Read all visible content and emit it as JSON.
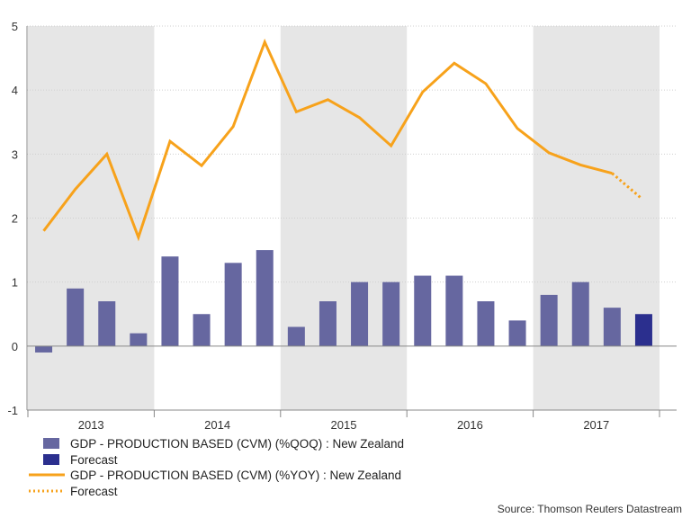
{
  "chart_data": {
    "type": "bar+line",
    "title": "",
    "xlabel": "",
    "ylabel": "",
    "ylim": [
      -1,
      5
    ],
    "yticks": [
      -1,
      0,
      1,
      2,
      3,
      4,
      5
    ],
    "grid": true,
    "years": [
      "2013",
      "2014",
      "2015",
      "2016",
      "2017"
    ],
    "categories": [
      "2013 Q1",
      "2013 Q2",
      "2013 Q3",
      "2013 Q4",
      "2014 Q1",
      "2014 Q2",
      "2014 Q3",
      "2014 Q4",
      "2015 Q1",
      "2015 Q2",
      "2015 Q3",
      "2015 Q4",
      "2016 Q1",
      "2016 Q2",
      "2016 Q3",
      "2016 Q4",
      "2017 Q1",
      "2017 Q2",
      "2017 Q3",
      "2017 Q4"
    ],
    "series": [
      {
        "name": "GDP - PRODUCTION BASED (CVM) (%QOQ) : New Zealand",
        "kind": "bar",
        "color": "#6667a0",
        "values": [
          -0.1,
          0.9,
          0.7,
          0.2,
          1.4,
          0.5,
          1.3,
          1.5,
          0.3,
          0.7,
          1.0,
          1.0,
          1.1,
          1.1,
          0.7,
          0.4,
          0.8,
          1.0,
          0.6,
          null
        ]
      },
      {
        "name": "Forecast",
        "kind": "bar",
        "color": "#2b2f8e",
        "values": [
          null,
          null,
          null,
          null,
          null,
          null,
          null,
          null,
          null,
          null,
          null,
          null,
          null,
          null,
          null,
          null,
          null,
          null,
          null,
          0.5
        ]
      },
      {
        "name": "GDP - PRODUCTION BASED (CVM) (%YOY) : New Zealand",
        "kind": "line",
        "color": "#f7a21b",
        "x": [
          0,
          1,
          2,
          3,
          4,
          5,
          6,
          7,
          8,
          9,
          10,
          11,
          12,
          13,
          14,
          15,
          16,
          17,
          18
        ],
        "values": [
          1.8,
          2.45,
          3.0,
          1.7,
          3.2,
          2.82,
          3.43,
          4.75,
          3.66,
          3.85,
          3.57,
          3.13,
          3.97,
          4.42,
          4.1,
          3.4,
          3.02,
          2.83,
          2.7
        ]
      },
      {
        "name": "Forecast",
        "kind": "line-dotted",
        "color": "#f7a21b",
        "x": [
          18,
          18.9
        ],
        "values": [
          2.7,
          2.32
        ]
      }
    ],
    "legend": [
      {
        "label": "GDP - PRODUCTION BASED (CVM) (%QOQ) : New Zealand",
        "symbol": "bar",
        "color": "#6667a0"
      },
      {
        "label": "Forecast",
        "symbol": "bar",
        "color": "#2b2f8e"
      },
      {
        "label": "GDP - PRODUCTION BASED (CVM) (%YOY) : New Zealand",
        "symbol": "line",
        "color": "#f7a21b"
      },
      {
        "label": "Forecast",
        "symbol": "dotted",
        "color": "#f7a21b"
      }
    ],
    "legend_placement": "bottom-left",
    "source": "Source: Thomson Reuters Datastream",
    "shade_color": "#e6e6e6",
    "grid_color": "#cfcfcf"
  }
}
